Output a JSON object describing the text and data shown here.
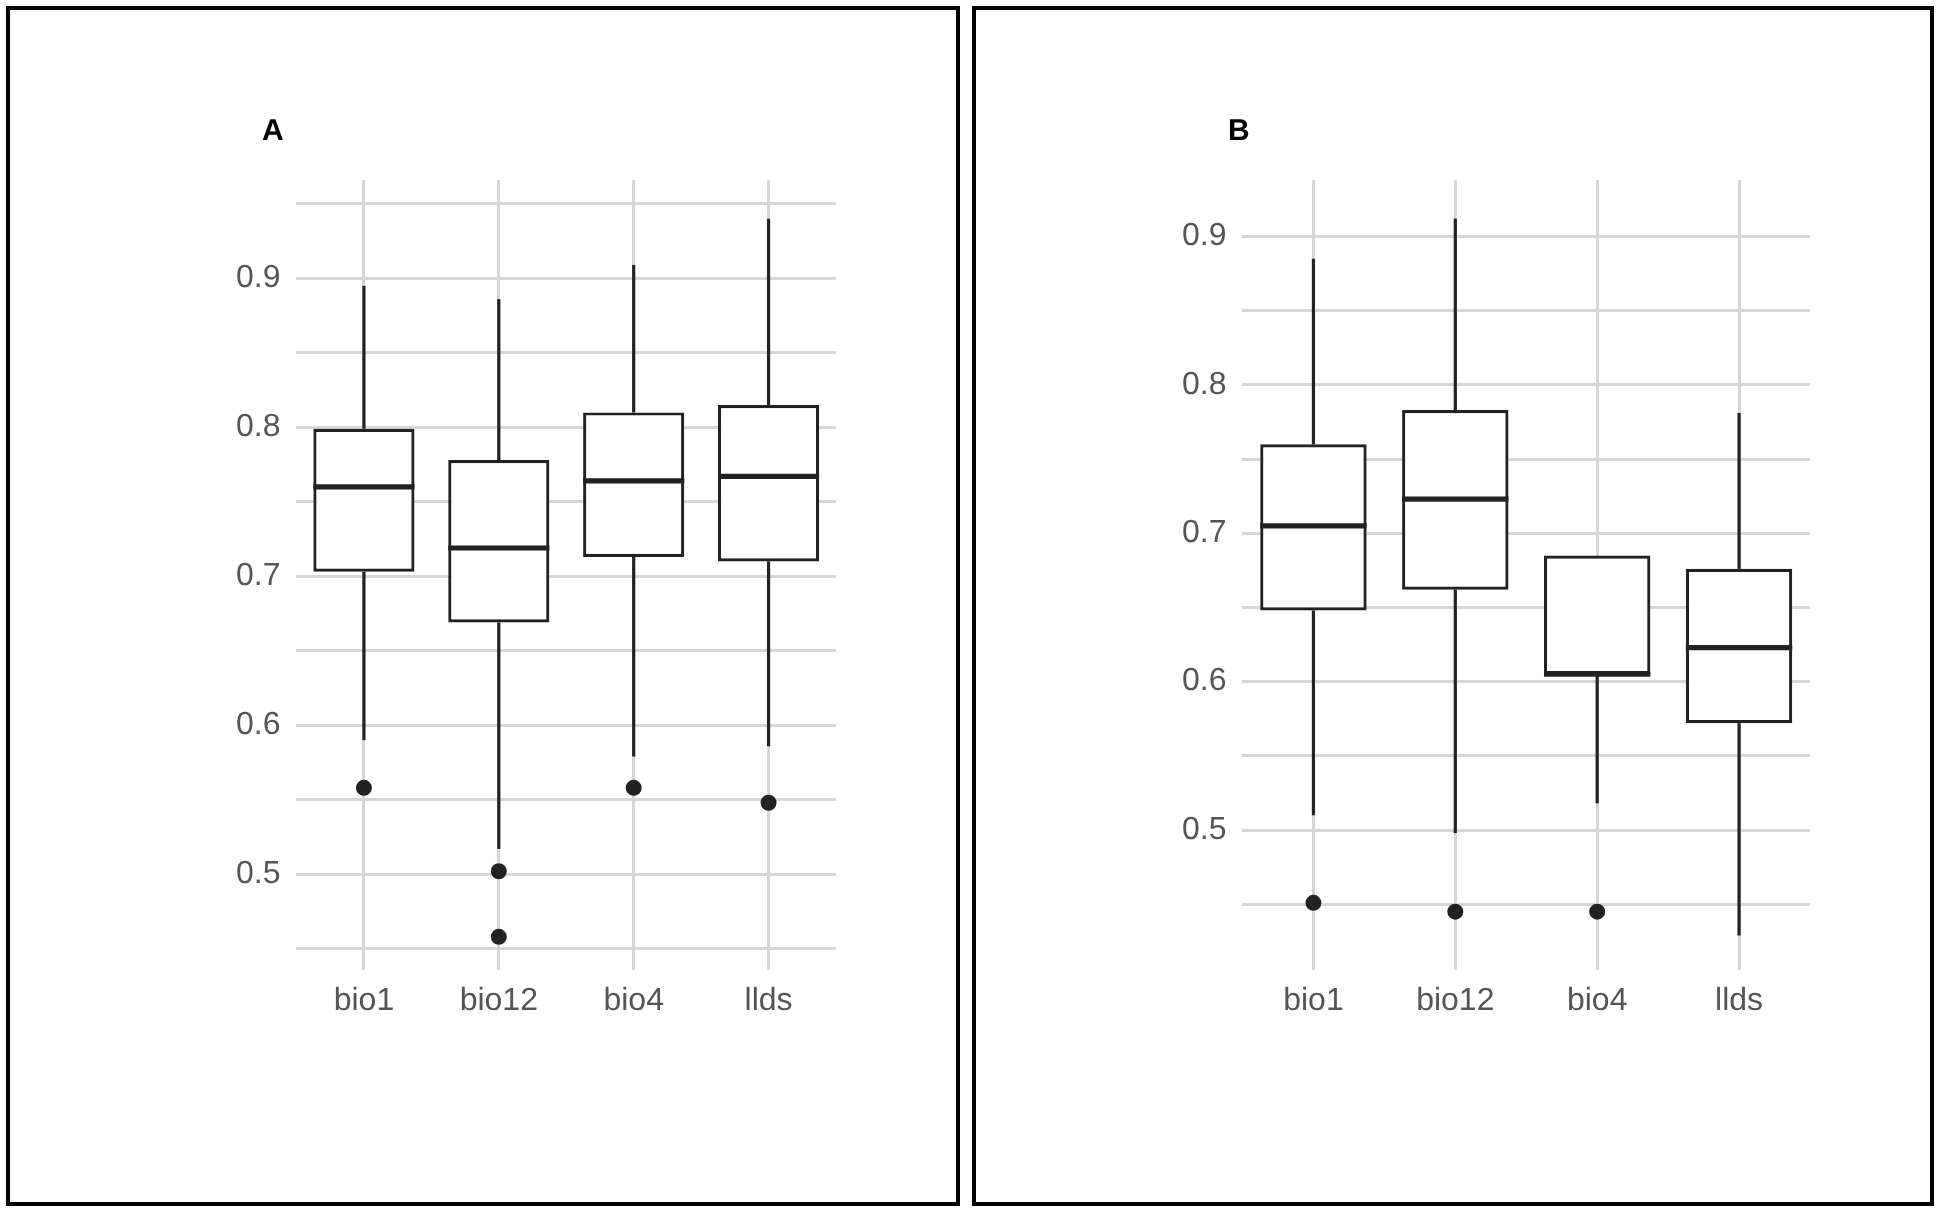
{
  "chart_data": [
    {
      "type": "box",
      "title": "A",
      "categories": [
        "bio1",
        "bio12",
        "bio4",
        "llds"
      ],
      "boxes": [
        {
          "low": 0.59,
          "q1": 0.703,
          "median": 0.76,
          "q3": 0.799,
          "high": 0.895,
          "outliers": [
            0.558
          ]
        },
        {
          "low": 0.517,
          "q1": 0.669,
          "median": 0.719,
          "q3": 0.778,
          "high": 0.886,
          "outliers": [
            0.502,
            0.458
          ]
        },
        {
          "low": 0.579,
          "q1": 0.713,
          "median": 0.764,
          "q3": 0.81,
          "high": 0.909,
          "outliers": [
            0.558
          ]
        },
        {
          "low": 0.586,
          "q1": 0.71,
          "median": 0.767,
          "q3": 0.815,
          "high": 0.94,
          "outliers": [
            0.548
          ]
        }
      ],
      "ylim": [
        0.436,
        0.966
      ],
      "yticks": [
        {
          "value": 0.45,
          "label": null
        },
        0.5,
        {
          "value": 0.55,
          "label": null
        },
        0.6,
        {
          "value": 0.65,
          "label": null
        },
        0.7,
        {
          "value": 0.75,
          "label": null
        },
        0.8,
        {
          "value": 0.85,
          "label": null
        },
        0.9,
        {
          "value": 0.95,
          "label": null
        }
      ],
      "grid": true
    },
    {
      "type": "box",
      "title": "B",
      "categories": [
        "bio1",
        "bio12",
        "bio4",
        "llds"
      ],
      "boxes": [
        {
          "low": 0.51,
          "q1": 0.648,
          "median": 0.705,
          "q3": 0.76,
          "high": 0.885,
          "outliers": [
            0.451
          ]
        },
        {
          "low": 0.498,
          "q1": 0.662,
          "median": 0.723,
          "q3": 0.783,
          "high": 0.912,
          "outliers": [
            0.445
          ]
        },
        {
          "low": 0.518,
          "q1": 0.605,
          "median": 0.605,
          "q3": 0.685,
          "high": 0.685,
          "outliers": [
            0.445
          ]
        },
        {
          "low": 0.429,
          "q1": 0.572,
          "median": 0.623,
          "q3": 0.676,
          "high": 0.781
        }
      ],
      "ylim": [
        0.406,
        0.938
      ],
      "yticks": [
        {
          "value": 0.45,
          "label": null
        },
        0.5,
        {
          "value": 0.55,
          "label": null
        },
        0.6,
        {
          "value": 0.65,
          "label": null
        },
        0.7,
        {
          "value": 0.75,
          "label": null
        },
        0.8,
        {
          "value": 0.85,
          "label": null
        },
        0.9
      ],
      "grid": true
    }
  ]
}
